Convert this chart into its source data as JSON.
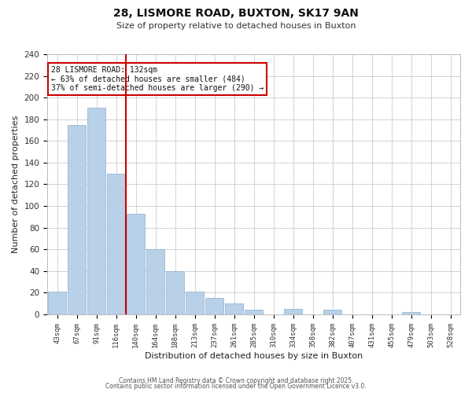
{
  "title": "28, LISMORE ROAD, BUXTON, SK17 9AN",
  "subtitle": "Size of property relative to detached houses in Buxton",
  "xlabel": "Distribution of detached houses by size in Buxton",
  "ylabel": "Number of detached properties",
  "categories": [
    "43sqm",
    "67sqm",
    "91sqm",
    "116sqm",
    "140sqm",
    "164sqm",
    "188sqm",
    "213sqm",
    "237sqm",
    "261sqm",
    "285sqm",
    "310sqm",
    "334sqm",
    "358sqm",
    "382sqm",
    "407sqm",
    "431sqm",
    "455sqm",
    "479sqm",
    "503sqm",
    "528sqm"
  ],
  "values": [
    21,
    175,
    191,
    130,
    93,
    60,
    40,
    21,
    15,
    10,
    4,
    0,
    5,
    0,
    4,
    0,
    0,
    0,
    2,
    0,
    0
  ],
  "bar_color": "#b8d0e8",
  "bar_edge_color": "#8ab0d0",
  "vline_color": "#cc0000",
  "annotation_text": "28 LISMORE ROAD: 132sqm\n← 63% of detached houses are smaller (484)\n37% of semi-detached houses are larger (290) →",
  "annotation_box_color": "#ffffff",
  "annotation_box_edge": "#cc0000",
  "ylim": [
    0,
    240
  ],
  "yticks": [
    0,
    20,
    40,
    60,
    80,
    100,
    120,
    140,
    160,
    180,
    200,
    220,
    240
  ],
  "footer1": "Contains HM Land Registry data © Crown copyright and database right 2025.",
  "footer2": "Contains public sector information licensed under the Open Government Licence v3.0.",
  "bg_color": "#ffffff",
  "grid_color": "#cccccc"
}
